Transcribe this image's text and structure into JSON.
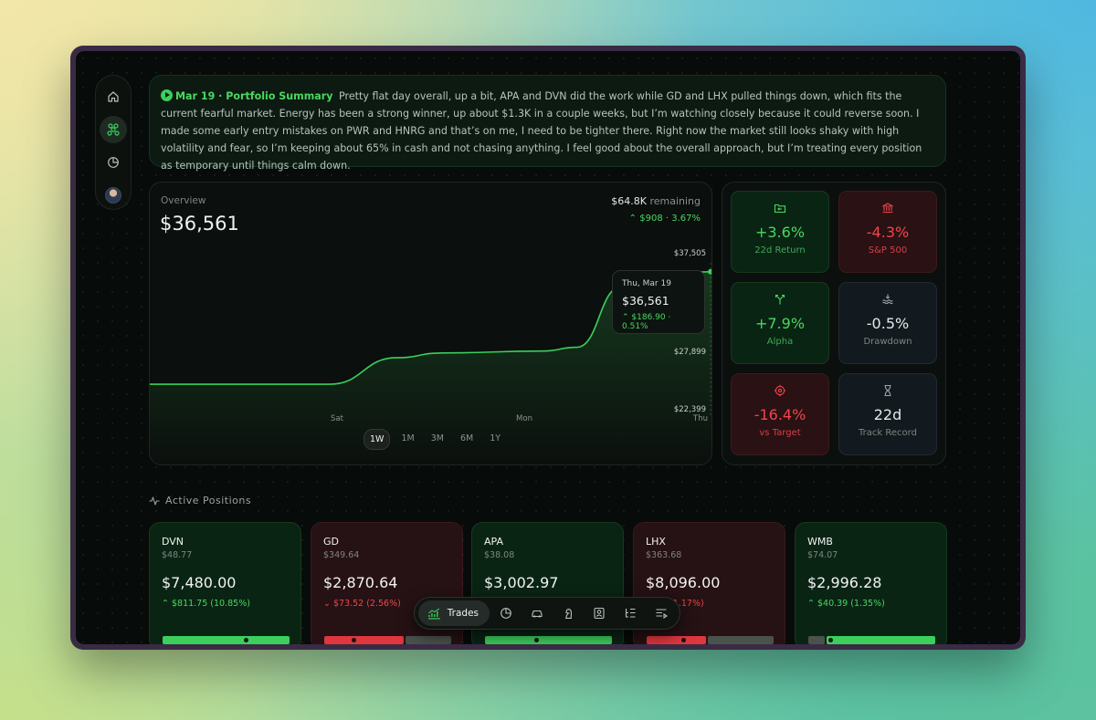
{
  "summary": {
    "title": "Mar 19 · Portfolio Summary",
    "text": "Pretty flat day overall, up a bit, APA and DVN did the work while GD and LHX pulled things down, which fits the current fearful market. Energy has been a strong winner, up about $1.3K in a couple weeks, but I’m watching closely because it could reverse soon. I made some early entry mistakes on PWR and HNRG and that’s on me, I need to be tighter there. Right now the market still looks shaky with high volatility and fear, so I’m keeping about 65% in cash and not chasing anything. I feel good about the overall approach, but I’m treating every position as temporary until things calm down."
  },
  "sidebar": {
    "icons": [
      "home-icon",
      "network-icon",
      "pie-chart-icon",
      "avatar"
    ]
  },
  "overview": {
    "label": "Overview",
    "value": "$36,561",
    "remaining_amount": "$64.8K",
    "remaining_label": " remaining",
    "change": "$908 · 3.67%",
    "tooltip": {
      "date": "Thu, Mar 19",
      "value": "$36,561",
      "change": "$186.90 · 0.51%"
    },
    "ranges": [
      "1W",
      "1M",
      "3M",
      "6M",
      "1Y"
    ],
    "selected_range": "1W"
  },
  "chart_data": {
    "type": "line",
    "x_labels": [
      "Sat",
      "Mon",
      "Thu"
    ],
    "y_ticks": [
      "$37,505",
      "$27,899",
      "$22,399"
    ],
    "series": [
      {
        "points": [
          [
            0,
            24700
          ],
          [
            0.32,
            24700
          ],
          [
            0.44,
            27500
          ],
          [
            0.52,
            28000
          ],
          [
            0.7,
            28200
          ],
          [
            0.76,
            28600
          ],
          [
            0.84,
            35000
          ],
          [
            0.88,
            36300
          ],
          [
            0.95,
            36500
          ],
          [
            1.0,
            36561
          ]
        ]
      }
    ],
    "ylim": [
      22399,
      37505
    ],
    "line_color": "#3ccf5b"
  },
  "stats": [
    {
      "icon": "folder-return-icon",
      "value": "+3.6%",
      "label": "22d Return",
      "tone": "green"
    },
    {
      "icon": "bank-icon",
      "value": "-4.3%",
      "label": "S&P 500",
      "tone": "red"
    },
    {
      "icon": "split-arrows-icon",
      "value": "+7.9%",
      "label": "Alpha",
      "tone": "green"
    },
    {
      "icon": "waves-icon",
      "value": "-0.5%",
      "label": "Drawdown",
      "tone": "neutral"
    },
    {
      "icon": "target-icon",
      "value": "-16.4%",
      "label": "vs Target",
      "tone": "red"
    },
    {
      "icon": "hourglass-icon",
      "value": "22d",
      "label": "Track Record",
      "tone": "neutral"
    }
  ],
  "positions": {
    "title": "Active Positions",
    "items": [
      {
        "ticker": "DVN",
        "price": "$48.77",
        "value": "$7,480.00",
        "change": "$811.75 (10.85%)",
        "direction": "up",
        "progress": 0.63
      },
      {
        "ticker": "GD",
        "price": "$349.64",
        "value": "$2,870.64",
        "change": "$73.52 (2.56%)",
        "direction": "down",
        "progress": 0.21
      },
      {
        "ticker": "APA",
        "price": "$38.08",
        "value": "$3,002.97",
        "change": "$",
        "direction": "up",
        "progress": 0.38
      },
      {
        "ticker": "LHX",
        "price": "$363.68",
        "value": "$8,096.00",
        "change": "94 (1.17%)",
        "direction": "down",
        "progress": 0.27
      },
      {
        "ticker": "WMB",
        "price": "$74.07",
        "value": "$2,996.28",
        "change": "$40.39 (1.35%)",
        "direction": "up",
        "progress": 0.14
      }
    ]
  },
  "dock": {
    "active_label": "Trades",
    "icons": [
      "trades-icon",
      "pie-chart-icon",
      "car-icon",
      "chess-knight-icon",
      "portrait-icon",
      "list-tree-icon",
      "playlist-icon"
    ]
  }
}
